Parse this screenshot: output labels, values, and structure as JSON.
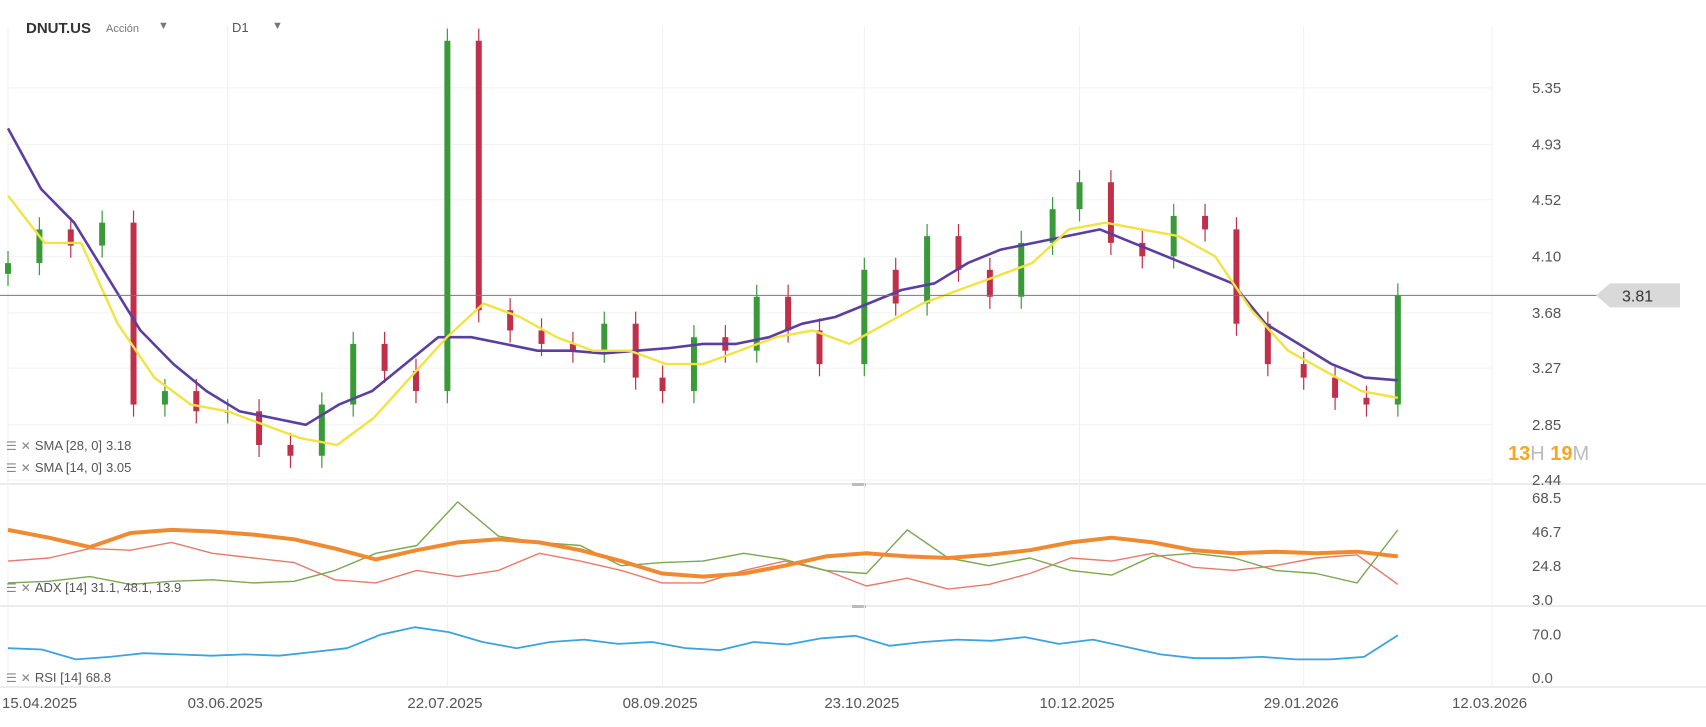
{
  "header": {
    "symbol": "DNUT.US",
    "type": "Acción",
    "timeframe": "D1"
  },
  "indicators": {
    "sma28": {
      "label": "SMA [28, 0]",
      "value": "3.18",
      "color": "#5b3fa0"
    },
    "sma14": {
      "label": "SMA [14, 0]",
      "value": "3.05",
      "color": "#f2e342"
    },
    "adx": {
      "label": "ADX [14]",
      "value": "31.1, 48.1, 13.9"
    },
    "rsi": {
      "label": "RSI [14]",
      "value": "68.8",
      "color": "#3ba3e0"
    }
  },
  "last_price": {
    "label": "3.81",
    "value": 3.81
  },
  "countdown": {
    "hours": "13",
    "h": "H",
    "minutes": "19",
    "m": "M"
  },
  "colors": {
    "up": "#3a9a3a",
    "down": "#c0304a",
    "adx": "#f08a30",
    "di_plus": "#7aa84f",
    "di_minus": "#e87a6a"
  },
  "chart_data": [
    {
      "type": "candlestick",
      "price_ticks": [
        "5.35",
        "4.93",
        "4.52",
        "4.10",
        "3.68",
        "3.27",
        "2.85",
        "2.44"
      ],
      "ylim": [
        2.44,
        5.78
      ],
      "x_ticks": [
        "15.04.2025",
        "03.06.2025",
        "22.07.2025",
        "08.09.2025",
        "23.10.2025",
        "10.12.2025",
        "29.01.2026",
        "12.03.2026"
      ],
      "xlim": [
        "2025-04-15",
        "2026-03-12"
      ],
      "series": [
        {
          "name": "Price",
          "x": [
            "2025-04-15",
            "2025-04-22",
            "2025-04-29",
            "2025-05-06",
            "2025-05-13",
            "2025-05-20",
            "2025-05-27",
            "2025-06-03",
            "2025-06-10",
            "2025-06-17",
            "2025-06-24",
            "2025-07-01",
            "2025-07-08",
            "2025-07-15",
            "2025-07-22",
            "2025-07-29",
            "2025-08-05",
            "2025-08-12",
            "2025-08-19",
            "2025-08-26",
            "2025-09-02",
            "2025-09-08",
            "2025-09-15",
            "2025-09-22",
            "2025-09-29",
            "2025-10-06",
            "2025-10-13",
            "2025-10-23",
            "2025-10-30",
            "2025-11-06",
            "2025-11-13",
            "2025-11-20",
            "2025-11-27",
            "2025-12-04",
            "2025-12-10",
            "2025-12-17",
            "2025-12-24",
            "2025-12-31",
            "2026-01-07",
            "2026-01-14",
            "2026-01-21",
            "2026-01-29",
            "2026-02-05",
            "2026-02-12",
            "2026-02-19"
          ],
          "close": [
            4.05,
            4.3,
            4.18,
            4.35,
            3.0,
            3.1,
            2.95,
            2.95,
            2.7,
            2.62,
            3.0,
            3.45,
            3.25,
            3.1,
            5.7,
            3.7,
            3.55,
            3.45,
            3.4,
            3.6,
            3.2,
            3.1,
            3.5,
            3.4,
            3.8,
            3.55,
            3.3,
            4.0,
            3.75,
            4.25,
            4.0,
            3.8,
            4.2,
            4.45,
            4.65,
            4.2,
            4.1,
            4.4,
            4.3,
            3.6,
            3.3,
            3.2,
            3.05,
            3.0,
            3.81
          ]
        }
      ],
      "sma28": [
        5.05,
        4.6,
        4.35,
        3.95,
        3.55,
        3.3,
        3.1,
        2.95,
        2.9,
        2.85,
        3.0,
        3.1,
        3.3,
        3.5,
        3.5,
        3.45,
        3.4,
        3.4,
        3.38,
        3.4,
        3.42,
        3.45,
        3.45,
        3.5,
        3.6,
        3.65,
        3.75,
        3.85,
        3.9,
        4.05,
        4.15,
        4.2,
        4.25,
        4.3,
        4.2,
        4.1,
        4.0,
        3.9,
        3.6,
        3.45,
        3.3,
        3.2,
        3.18
      ],
      "sma14": [
        4.55,
        4.2,
        4.2,
        3.6,
        3.2,
        3.0,
        2.95,
        2.85,
        2.75,
        2.7,
        2.9,
        3.2,
        3.5,
        3.75,
        3.65,
        3.5,
        3.4,
        3.4,
        3.3,
        3.3,
        3.4,
        3.5,
        3.55,
        3.45,
        3.6,
        3.75,
        3.85,
        3.95,
        4.05,
        4.3,
        4.35,
        4.3,
        4.25,
        4.1,
        3.7,
        3.4,
        3.25,
        3.1,
        3.05
      ]
    },
    {
      "type": "line",
      "name": "ADX",
      "y_ticks": [
        "68.5",
        "46.7",
        "24.8",
        "3.0"
      ],
      "ylim": [
        3.0,
        68.5
      ],
      "series": [
        {
          "name": "ADX",
          "values": [
            48,
            43,
            37,
            46,
            48,
            47,
            45,
            42,
            36,
            29,
            35,
            40,
            42,
            40,
            35,
            28,
            20,
            18,
            20,
            25,
            31,
            33,
            31,
            30,
            32,
            35,
            40,
            43,
            40,
            35,
            33,
            34,
            33,
            34,
            31
          ]
        },
        {
          "name": "+DI",
          "values": [
            14,
            15,
            18,
            13,
            15,
            16,
            14,
            15,
            22,
            33,
            38,
            66,
            44,
            40,
            38,
            25,
            27,
            28,
            33,
            29,
            22,
            20,
            48,
            30,
            25,
            30,
            22,
            19,
            31,
            33,
            30,
            22,
            20,
            14,
            48
          ]
        },
        {
          "name": "-DI",
          "values": [
            28,
            30,
            36,
            35,
            40,
            33,
            30,
            27,
            16,
            14,
            22,
            18,
            22,
            33,
            28,
            22,
            14,
            14,
            22,
            28,
            22,
            12,
            17,
            10,
            13,
            20,
            30,
            28,
            33,
            24,
            22,
            25,
            30,
            32,
            13
          ]
        }
      ]
    },
    {
      "type": "line",
      "name": "RSI",
      "y_ticks": [
        "70.0",
        "0.0"
      ],
      "ylim": [
        0,
        100
      ],
      "series": [
        {
          "name": "RSI",
          "values": [
            48,
            46,
            30,
            34,
            40,
            38,
            36,
            38,
            36,
            42,
            48,
            70,
            82,
            74,
            58,
            48,
            58,
            62,
            55,
            58,
            48,
            45,
            58,
            54,
            64,
            68,
            52,
            58,
            62,
            60,
            66,
            55,
            62,
            50,
            38,
            32,
            32,
            34,
            30,
            30,
            34,
            68.8
          ]
        }
      ]
    }
  ]
}
